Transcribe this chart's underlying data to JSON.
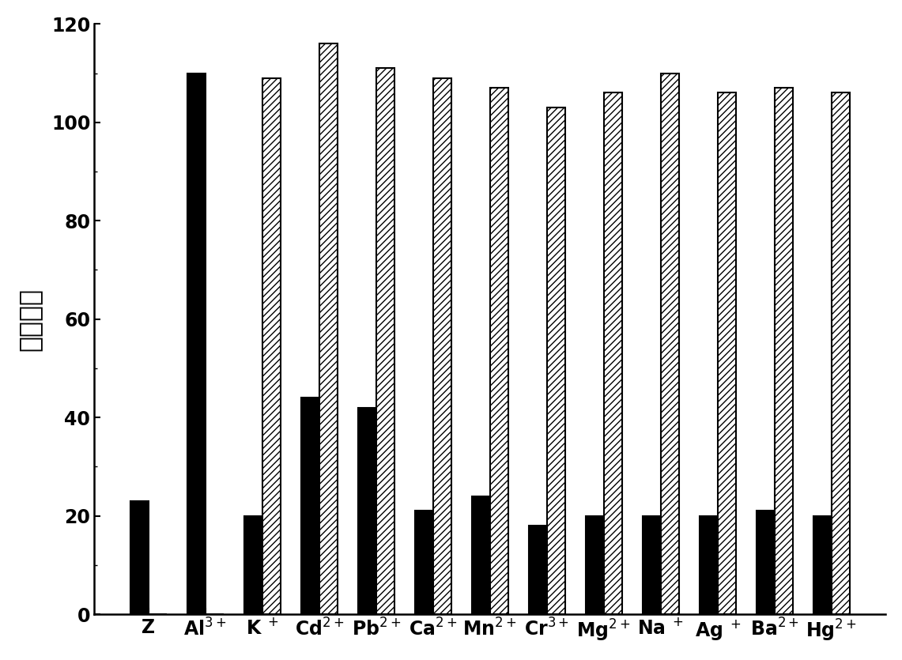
{
  "categories": [
    "Z",
    "Al3+",
    "K+",
    "Cd2+",
    "Pb2+",
    "Ca2+",
    "Mn2+",
    "Cr3+",
    "Mg2+",
    "Na+",
    "Ag+",
    "Ba2+",
    "Hg2+"
  ],
  "solid_values": [
    23,
    110,
    20,
    44,
    42,
    21,
    24,
    18,
    20,
    20,
    20,
    21,
    20
  ],
  "hatched_values": [
    0,
    0,
    109,
    116,
    111,
    109,
    107,
    103,
    106,
    110,
    106,
    107,
    106
  ],
  "solid_color": "#000000",
  "hatched_color": "#ffffff",
  "hatched_edge_color": "#000000",
  "ylabel": "荧光强度",
  "ylim": [
    0,
    120
  ],
  "yticks": [
    0,
    20,
    40,
    60,
    80,
    100,
    120
  ],
  "background_color": "#ffffff",
  "bar_width": 0.32,
  "hatch_pattern": "////",
  "ylabel_fontsize": 24,
  "tick_fontsize": 17,
  "xlabel_fontsize": 17,
  "linewidth": 1.5
}
